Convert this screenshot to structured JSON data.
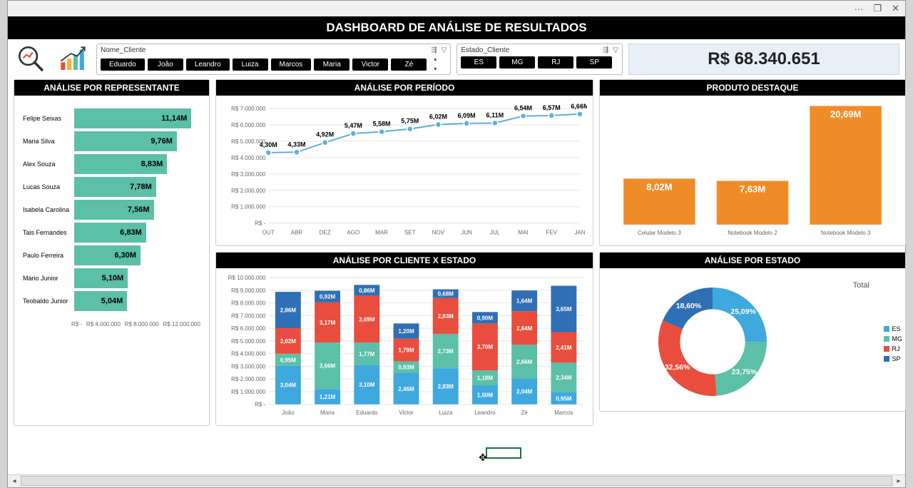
{
  "window": {
    "dots": "···",
    "restore": "❐",
    "close": "✕"
  },
  "banner_title": "DASHBOARD DE ANÁLISE DE RESULTADOS",
  "slicer_nome": {
    "title": "Nome_Cliente",
    "items": [
      "Eduardo",
      "João",
      "Leandro",
      "Luiza",
      "Marcos",
      "Maria",
      "Victor",
      "Zé"
    ]
  },
  "slicer_estado": {
    "title": "Estado_Cliente",
    "items": [
      "ES",
      "MG",
      "RJ",
      "SP"
    ]
  },
  "kpi_total": "R$ 68.340.651",
  "colors": {
    "teal": "#5cbfa8",
    "orange": "#f08c28",
    "blue": "#3fa8dd",
    "red": "#e84d3d",
    "darkblue": "#2f6fb3",
    "line": "#5db0d8",
    "grid": "#e6e6e6"
  },
  "rep_chart": {
    "title": "ANÁLISE POR REPRESENTANTE",
    "max": 12,
    "axis": [
      "R$ -",
      "R$ 4.000.000",
      "R$ 8.000.000",
      "R$ 12.000.000"
    ],
    "rows": [
      {
        "name": "Felipe Seixas",
        "label": "11,14M",
        "v": 11.14
      },
      {
        "name": "Maria Silva",
        "label": "9,76M",
        "v": 9.76
      },
      {
        "name": "Alex Souza",
        "label": "8,83M",
        "v": 8.83
      },
      {
        "name": "Lucas Souza",
        "label": "7,78M",
        "v": 7.78
      },
      {
        "name": "Isabela Carolina",
        "label": "7,56M",
        "v": 7.56
      },
      {
        "name": "Tais Fernandes",
        "label": "6,83M",
        "v": 6.83
      },
      {
        "name": "Paulo Ferreira",
        "label": "6,30M",
        "v": 6.3
      },
      {
        "name": "Mário Junior",
        "label": "5,10M",
        "v": 5.1
      },
      {
        "name": "Teobaldo Junior",
        "label": "5,04M",
        "v": 5.04
      }
    ]
  },
  "period_chart": {
    "title": "ANÁLISE POR PERÍODO",
    "ymax": 7000000,
    "yticks": [
      {
        "v": 0,
        "l": "R$ -"
      },
      {
        "v": 1000000,
        "l": "R$ 1.000.000"
      },
      {
        "v": 2000000,
        "l": "R$ 2.000.000"
      },
      {
        "v": 3000000,
        "l": "R$ 3.000.000"
      },
      {
        "v": 4000000,
        "l": "R$ 4.000.000"
      },
      {
        "v": 5000000,
        "l": "R$ 5.000.000"
      },
      {
        "v": 6000000,
        "l": "R$ 6.000.000"
      },
      {
        "v": 7000000,
        "l": "R$ 7.000.000"
      }
    ],
    "points": [
      {
        "x": "OUT",
        "v": 4300000,
        "l": "4,30M"
      },
      {
        "x": "ABR",
        "v": 4330000,
        "l": "4,33M"
      },
      {
        "x": "DEZ",
        "v": 4920000,
        "l": "4,92M"
      },
      {
        "x": "AGO",
        "v": 5470000,
        "l": "5,47M"
      },
      {
        "x": "MAR",
        "v": 5580000,
        "l": "5,58M"
      },
      {
        "x": "SET",
        "v": 5750000,
        "l": "5,75M"
      },
      {
        "x": "NOV",
        "v": 6020000,
        "l": "6,02M"
      },
      {
        "x": "JUN",
        "v": 6090000,
        "l": "6,09M"
      },
      {
        "x": "JUL",
        "v": 6110000,
        "l": "6,11M"
      },
      {
        "x": "MAI",
        "v": 6540000,
        "l": "6,54M"
      },
      {
        "x": "FEV",
        "v": 6570000,
        "l": "6,57M"
      },
      {
        "x": "JAN",
        "v": 6660000,
        "l": "6,66M"
      }
    ]
  },
  "product_chart": {
    "title": "PRODUTO DESTAQUE",
    "ymax": 21,
    "bars": [
      {
        "x": "Celular Modelo 3",
        "v": 8.02,
        "l": "8,02M"
      },
      {
        "x": "Notebook Modelo 2",
        "v": 7.63,
        "l": "7,63M"
      },
      {
        "x": "Notebook Modelo 3",
        "v": 20.69,
        "l": "20,69M"
      }
    ]
  },
  "stacked_chart": {
    "title": "ANÁLISE POR CLIENTE X ESTADO",
    "ymax": 10,
    "yticks": [
      {
        "v": 0,
        "l": "R$ -"
      },
      {
        "v": 1,
        "l": "R$ 1.000.000"
      },
      {
        "v": 2,
        "l": "R$ 2.000.000"
      },
      {
        "v": 3,
        "l": "R$ 3.000.000"
      },
      {
        "v": 4,
        "l": "R$ 4.000.000"
      },
      {
        "v": 5,
        "l": "R$ 5.000.000"
      },
      {
        "v": 6,
        "l": "R$ 6.000.000"
      },
      {
        "v": 7,
        "l": "R$ 7.000.000"
      },
      {
        "v": 8,
        "l": "R$ 8.000.000"
      },
      {
        "v": 9,
        "l": "R$ 9.000.000"
      },
      {
        "v": 10,
        "l": "R$ 10.000.000"
      }
    ],
    "series": [
      "ES",
      "MG",
      "RJ",
      "SP"
    ],
    "series_colors": [
      "#3fa8dd",
      "#5cbfa8",
      "#e84d3d",
      "#2f6fb3"
    ],
    "cats": [
      {
        "x": "João",
        "seg": [
          {
            "v": 3.04,
            "l": "3,04M"
          },
          {
            "v": 0.95,
            "l": "0,95M"
          },
          {
            "v": 2.02,
            "l": "2,02M"
          },
          {
            "v": 2.86,
            "l": "2,86M"
          }
        ]
      },
      {
        "x": "Maria",
        "seg": [
          {
            "v": 1.21,
            "l": "1,21M"
          },
          {
            "v": 3.66,
            "l": "3,66M"
          },
          {
            "v": 3.17,
            "l": "3,17M"
          },
          {
            "v": 0.92,
            "l": "0,92M"
          }
        ]
      },
      {
        "x": "Eduardo",
        "seg": [
          {
            "v": 3.1,
            "l": "3,10M"
          },
          {
            "v": 1.77,
            "l": "1,77M"
          },
          {
            "v": 3.69,
            "l": "3,69M"
          },
          {
            "v": 0.86,
            "l": "0,86M"
          }
        ]
      },
      {
        "x": "Victor",
        "seg": [
          {
            "v": 2.46,
            "l": "2,46M"
          },
          {
            "v": 0.93,
            "l": "0,93M"
          },
          {
            "v": 1.79,
            "l": "1,79M"
          },
          {
            "v": 1.2,
            "l": "1,20M"
          }
        ]
      },
      {
        "x": "Luiza",
        "seg": [
          {
            "v": 2.83,
            "l": "2,83M"
          },
          {
            "v": 2.73,
            "l": "2,73M"
          },
          {
            "v": 2.83,
            "l": "2,83M"
          },
          {
            "v": 0.68,
            "l": "0,68M"
          }
        ]
      },
      {
        "x": "Leandro",
        "seg": [
          {
            "v": 1.5,
            "l": "1,50M"
          },
          {
            "v": 1.18,
            "l": "1,18M"
          },
          {
            "v": 3.7,
            "l": "3,70M"
          },
          {
            "v": 0.9,
            "l": "0,90M"
          }
        ]
      },
      {
        "x": "Zé",
        "seg": [
          {
            "v": 2.04,
            "l": "2,04M"
          },
          {
            "v": 2.66,
            "l": "2,66M"
          },
          {
            "v": 2.64,
            "l": "2,64M"
          },
          {
            "v": 1.64,
            "l": "1,64M"
          }
        ]
      },
      {
        "x": "Marcos",
        "seg": [
          {
            "v": 0.95,
            "l": "0,95M"
          },
          {
            "v": 2.34,
            "l": "2,34M"
          },
          {
            "v": 2.41,
            "l": "2,41M"
          },
          {
            "v": 3.65,
            "l": "3,65M"
          }
        ]
      }
    ]
  },
  "donut": {
    "title": "ANÁLISE POR ESTADO",
    "legend_title": "Total",
    "slices": [
      {
        "name": "ES",
        "pct": 25.09,
        "l": "25,09%",
        "color": "#3fa8dd"
      },
      {
        "name": "MG",
        "pct": 23.75,
        "l": "23,75%",
        "color": "#5cbfa8"
      },
      {
        "name": "RJ",
        "pct": 32.56,
        "l": "32,56%",
        "color": "#e84d3d"
      },
      {
        "name": "SP",
        "pct": 18.6,
        "l": "18,60%",
        "color": "#2f6fb3"
      }
    ]
  }
}
